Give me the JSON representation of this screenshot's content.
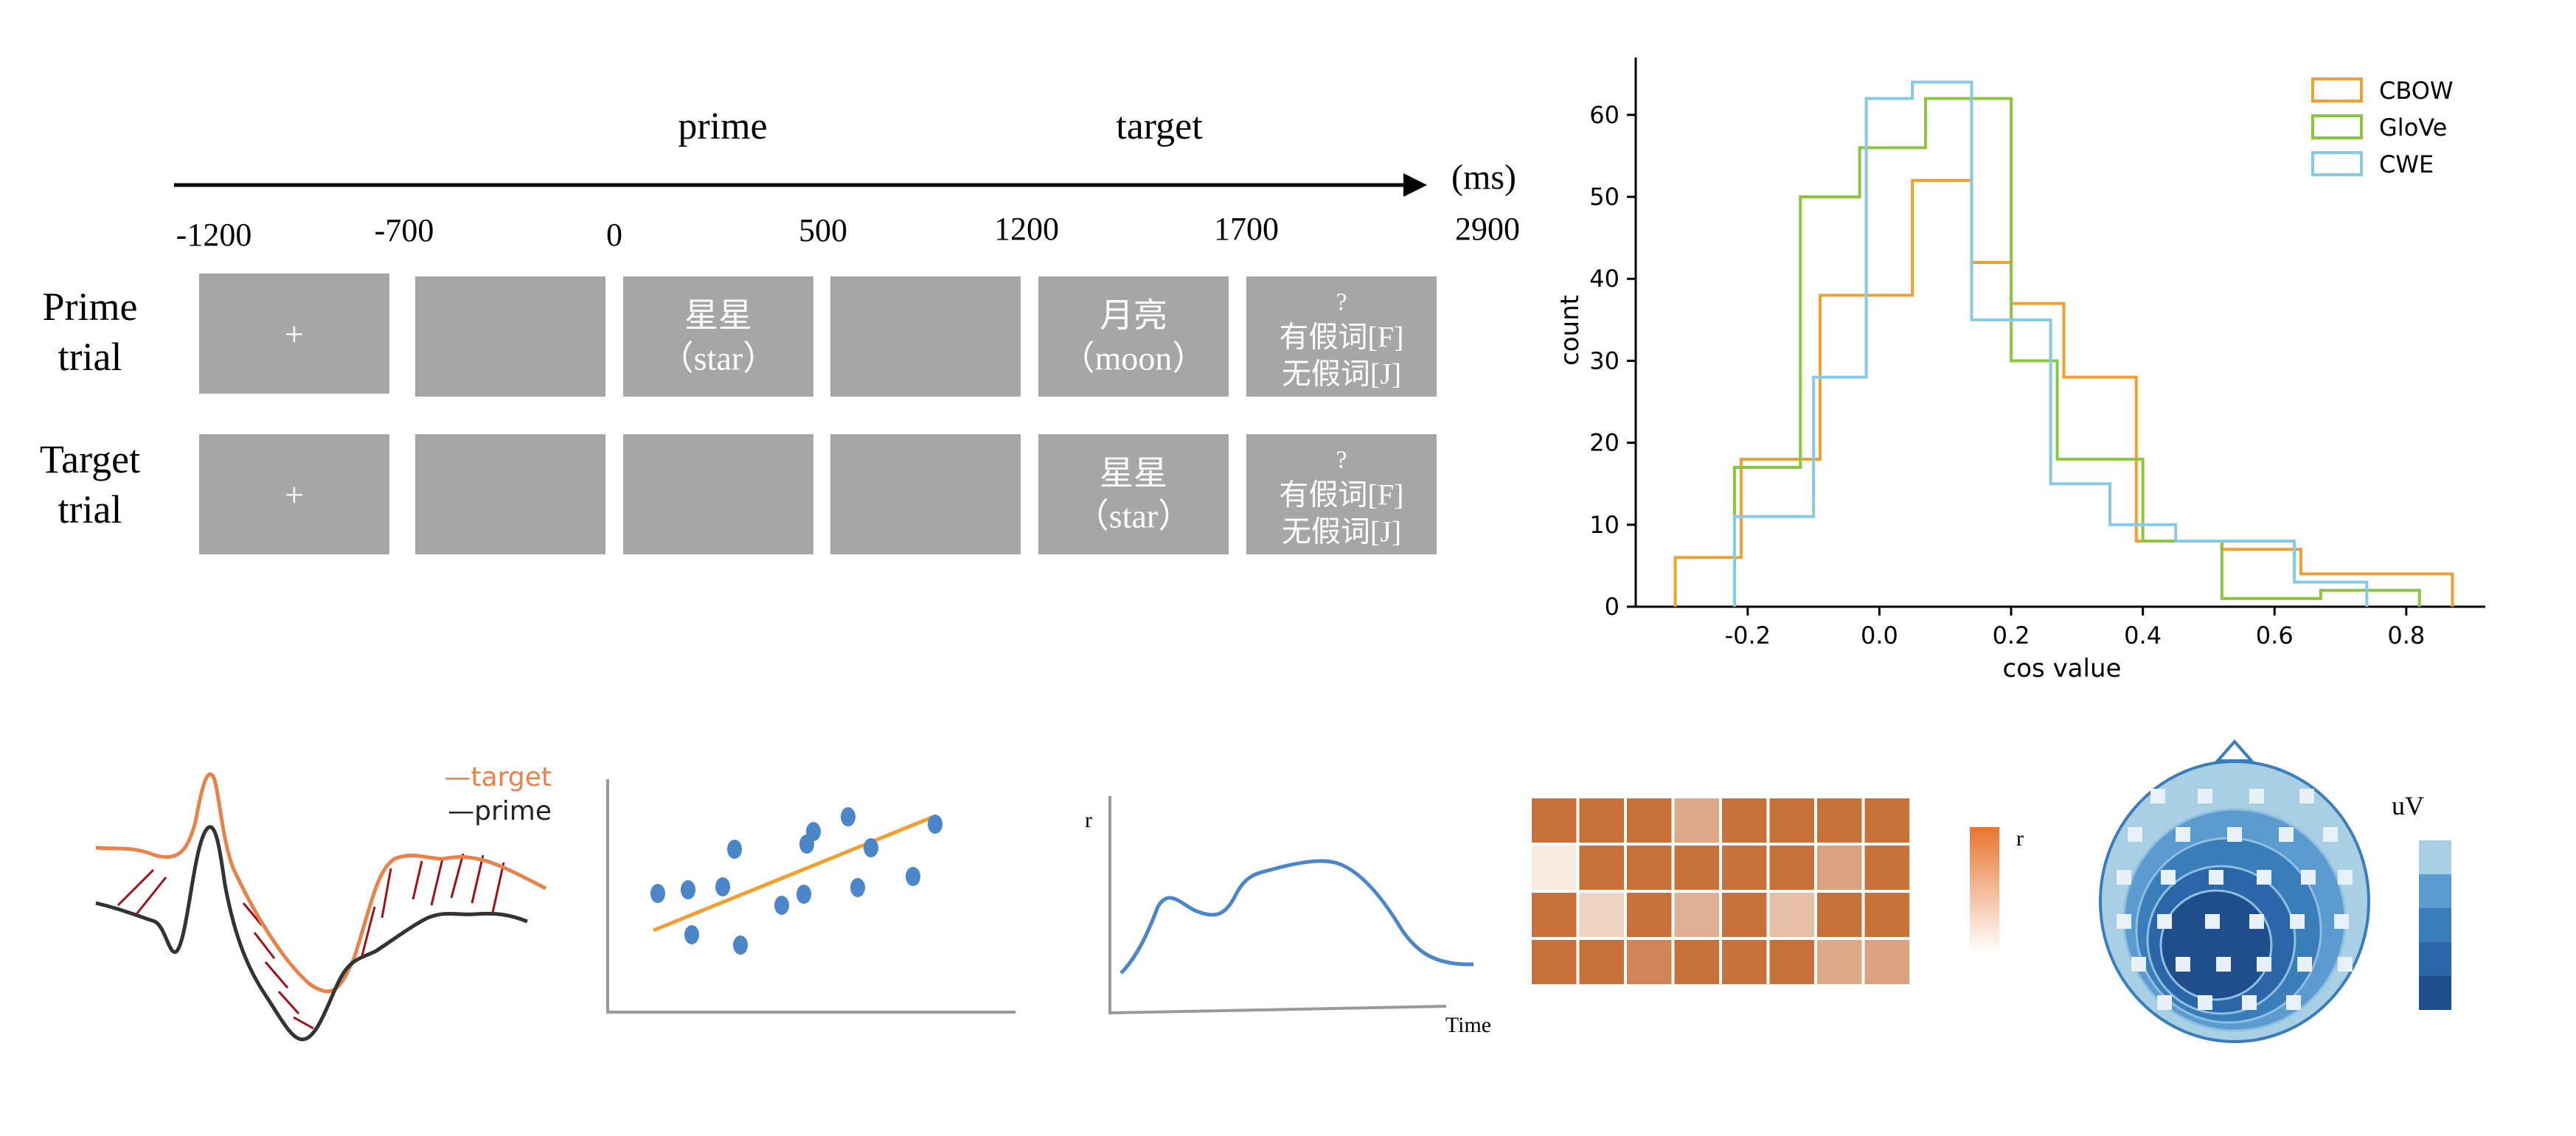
{
  "paradigm": {
    "phase_labels": {
      "prime": "prime",
      "target": "target"
    },
    "unit": "(ms)",
    "ticks": [
      "-1200",
      "-700",
      "0",
      "500",
      "1200",
      "1700",
      "2900"
    ],
    "rows": [
      {
        "label_line1": "Prime",
        "label_line2": "trial",
        "boxes": [
          {
            "lines": [
              "+"
            ]
          },
          {
            "lines": []
          },
          {
            "lines": [
              "星星",
              "（star）"
            ]
          },
          {
            "lines": []
          },
          {
            "lines": [
              "月亮",
              "（moon）"
            ]
          },
          {
            "lines": [
              "?",
              "有假词[F]",
              "无假词[J]"
            ]
          }
        ]
      },
      {
        "label_line1": "Target",
        "label_line2": "trial",
        "boxes": [
          {
            "lines": [
              "+"
            ]
          },
          {
            "lines": []
          },
          {
            "lines": []
          },
          {
            "lines": []
          },
          {
            "lines": [
              "星星",
              "（star）"
            ]
          },
          {
            "lines": [
              "?",
              "有假词[F]",
              "无假词[J]"
            ]
          }
        ]
      }
    ]
  },
  "chart_data": [
    {
      "type": "histogram",
      "xlabel": "cos value",
      "ylabel": "count",
      "xlim": [
        -0.37,
        0.92
      ],
      "ylim": [
        0,
        67
      ],
      "xticks": [
        "-0.2",
        "0.0",
        "0.2",
        "0.4",
        "0.6",
        "0.8"
      ],
      "yticks": [
        "0",
        "10",
        "20",
        "30",
        "40",
        "50",
        "60"
      ],
      "legend_position": "top-right",
      "series": [
        {
          "name": "CBOW",
          "color": "#f0a030",
          "edges": [
            -0.31,
            -0.21,
            -0.09,
            -0.02,
            0.05,
            0.14,
            0.2,
            0.28,
            0.39,
            0.52,
            0.64,
            0.75,
            0.87
          ],
          "counts": [
            6,
            18,
            38,
            38,
            52,
            42,
            37,
            28,
            8,
            7,
            4,
            4
          ]
        },
        {
          "name": "GloVe",
          "color": "#8cc63f",
          "edges": [
            -0.22,
            -0.12,
            -0.03,
            0.07,
            0.2,
            0.27,
            0.4,
            0.52,
            0.67,
            0.82
          ],
          "counts": [
            17,
            50,
            56,
            62,
            30,
            18,
            8,
            1,
            2
          ]
        },
        {
          "name": "CWE",
          "color": "#87cae8",
          "edges": [
            -0.22,
            -0.1,
            -0.02,
            0.05,
            0.14,
            0.26,
            0.35,
            0.45,
            0.63,
            0.74
          ],
          "counts": [
            11,
            28,
            62,
            64,
            35,
            15,
            10,
            8,
            3
          ]
        }
      ]
    }
  ],
  "panels": {
    "erp": {
      "legend_target": "—target",
      "legend_prime": "—prime",
      "target_color": "#e8824a",
      "prime_color": "#333333",
      "hatch_color": "#a0101a"
    },
    "scatter": {
      "point_color": "#4a86c8",
      "line_color": "#f0a030"
    },
    "timecourse": {
      "ylabel": "r",
      "xlabel": "Time",
      "line_color": "#4a86c8"
    },
    "heatmap": {
      "colorbar_label": "r",
      "base_color": "#c8703a",
      "levels": [
        [
          1,
          1,
          1,
          0.6,
          1,
          1,
          1,
          1
        ],
        [
          0.15,
          1,
          1,
          1,
          1,
          1,
          0.65,
          1
        ],
        [
          1,
          0.3,
          1,
          0.55,
          1,
          0.45,
          1,
          1
        ],
        [
          1,
          1,
          0.85,
          1,
          1,
          1,
          0.6,
          0.65
        ]
      ]
    },
    "topomap": {
      "colorbar_label": "uV",
      "scale_colors": [
        "#a9cfe4",
        "#5b9bd0",
        "#3a7dbb",
        "#2b66a8",
        "#1e4f8c"
      ]
    }
  }
}
